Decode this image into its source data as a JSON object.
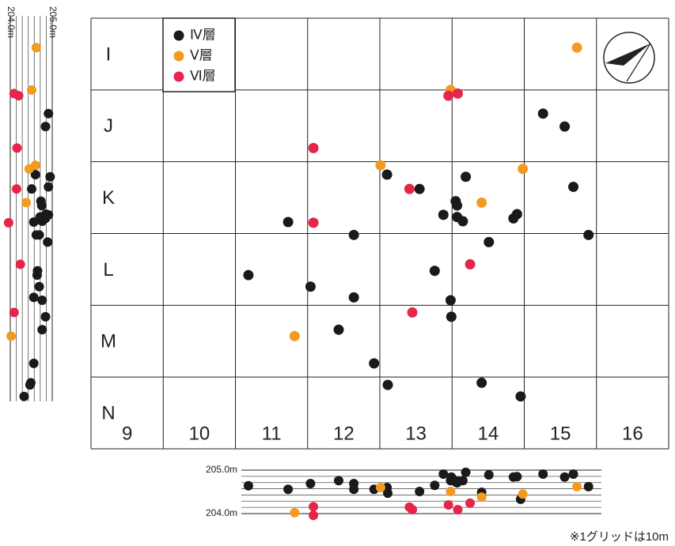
{
  "chart_data": {
    "type": "scatter",
    "rows": [
      "I",
      "J",
      "K",
      "L",
      "M",
      "N"
    ],
    "xticks": [
      9,
      10,
      11,
      12,
      13,
      14,
      15,
      16
    ],
    "xlim": [
      8.5,
      16.5
    ],
    "ylim": [
      0,
      6
    ],
    "yreverse": true,
    "grid": true,
    "zlim": [
      204,
      205
    ],
    "zticks": [
      {
        "value": 204,
        "label": "204.0m"
      },
      {
        "value": 205,
        "label": "205.0m"
      }
    ],
    "note": "※1グリッドは10m",
    "series": [
      {
        "name": "Ⅳ層",
        "color": "#1a1a1a",
        "x": [
          10.68,
          11.23,
          11.54,
          11.93,
          12.14,
          12.14,
          12.42,
          12.6,
          12.61,
          13.05,
          13.26,
          13.38,
          13.48,
          13.49,
          13.55,
          13.57,
          13.57,
          13.65,
          13.69,
          13.91,
          14.01,
          14.35,
          14.4,
          14.45,
          14.76,
          15.06,
          15.18,
          15.39
        ],
        "y": [
          3.58,
          2.84,
          3.74,
          4.34,
          3.02,
          3.89,
          4.81,
          2.18,
          5.11,
          2.38,
          3.52,
          2.74,
          3.93,
          4.16,
          2.55,
          2.61,
          2.77,
          2.83,
          2.21,
          5.08,
          3.12,
          2.79,
          2.73,
          5.27,
          1.33,
          1.51,
          2.35,
          3.02
        ],
        "z": [
          204.64,
          204.56,
          204.69,
          204.76,
          204.69,
          204.56,
          204.56,
          204.6,
          204.47,
          204.51,
          204.65,
          204.91,
          204.76,
          204.84,
          204.73,
          204.75,
          204.71,
          204.76,
          204.95,
          204.49,
          204.89,
          204.84,
          204.85,
          204.33,
          204.91,
          204.84,
          204.91,
          204.62
        ]
      },
      {
        "name": "Ⅴ層",
        "color": "#f39a21",
        "x": [
          13.48,
          11.32,
          12.51,
          13.91,
          14.48,
          15.23
        ],
        "y": [
          1.0,
          4.43,
          2.05,
          2.57,
          2.1,
          0.41
        ],
        "z": [
          204.51,
          204.02,
          204.6,
          204.38,
          204.45,
          204.62
        ]
      },
      {
        "name": "Ⅵ層",
        "color": "#e5254a",
        "x": [
          11.58,
          11.58,
          12.91,
          12.95,
          13.45,
          13.58,
          13.75
        ],
        "y": [
          1.81,
          2.85,
          2.38,
          4.1,
          1.08,
          1.05,
          3.43
        ],
        "z": [
          204.16,
          203.96,
          204.15,
          204.09,
          204.2,
          204.09,
          204.24
        ]
      }
    ]
  }
}
